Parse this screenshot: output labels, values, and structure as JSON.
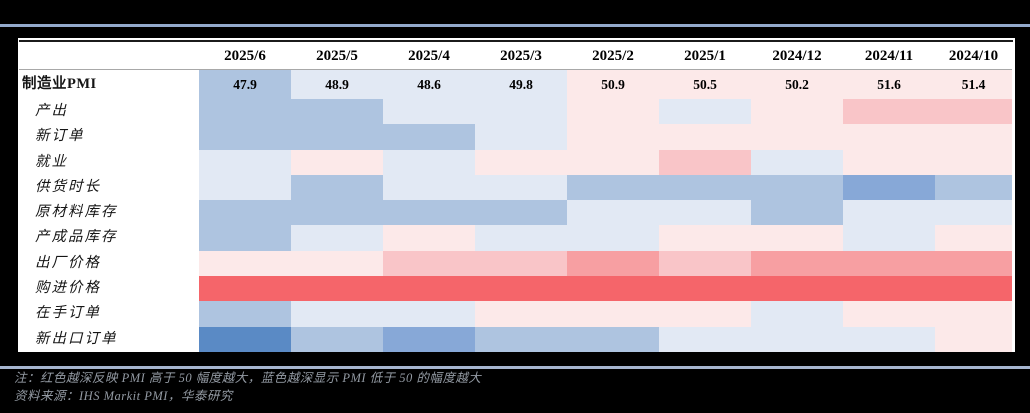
{
  "chart_data": {
    "type": "heatmap",
    "title": "",
    "columns": [
      "2025/6",
      "2025/5",
      "2025/4",
      "2025/3",
      "2025/2",
      "2025/1",
      "2024/12",
      "2024/11",
      "2024/10"
    ],
    "pmi_row": {
      "label": "制造业PMI",
      "values": [
        "47.9",
        "48.9",
        "48.6",
        "49.8",
        "50.9",
        "50.5",
        "50.2",
        "51.6",
        "51.4"
      ],
      "levels": [
        "blue1",
        "blue0",
        "blue0",
        "blue0",
        "pink0",
        "pink0",
        "pink0",
        "pink0",
        "pink0"
      ]
    },
    "rows": [
      {
        "label": "产出",
        "levels": [
          "blue1",
          "blue1",
          "blue0",
          "blue0",
          "pink0",
          "blue0",
          "pink0",
          "pink1",
          "pink1"
        ]
      },
      {
        "label": "新订单",
        "levels": [
          "blue1",
          "blue1",
          "blue1",
          "blue0",
          "pink0",
          "pink0",
          "pink0",
          "pink0",
          "pink0"
        ]
      },
      {
        "label": "就业",
        "levels": [
          "blue0",
          "pink0",
          "blue0",
          "pink0",
          "pink0",
          "pink1",
          "blue0",
          "pink0",
          "pink0"
        ]
      },
      {
        "label": "供货时长",
        "levels": [
          "blue0",
          "blue1",
          "blue0",
          "blue0",
          "blue1",
          "blue1",
          "blue1",
          "blue2",
          "blue1"
        ]
      },
      {
        "label": "原材料库存",
        "levels": [
          "blue1",
          "blue1",
          "blue1",
          "blue1",
          "blue0",
          "blue0",
          "blue1",
          "blue0",
          "blue0"
        ]
      },
      {
        "label": "产成品库存",
        "levels": [
          "blue1",
          "blue0",
          "pink0",
          "blue0",
          "blue0",
          "pink0",
          "pink0",
          "blue0",
          "pink0"
        ]
      },
      {
        "label": "出厂价格",
        "levels": [
          "pink0",
          "pink0",
          "pink1",
          "pink1",
          "pink2",
          "pink1",
          "pink2",
          "pink2",
          "pink2"
        ]
      },
      {
        "label": "购进价格",
        "levels": [
          "red",
          "red",
          "red",
          "red",
          "red",
          "red",
          "red",
          "red",
          "red"
        ]
      },
      {
        "label": "在手订单",
        "levels": [
          "blue1",
          "blue0",
          "blue0",
          "pink0",
          "pink0",
          "pink0",
          "blue0",
          "pink0",
          "pink0"
        ]
      },
      {
        "label": "新出口订单",
        "levels": [
          "blue3",
          "blue1",
          "blue2",
          "blue1",
          "blue1",
          "blue0",
          "blue0",
          "blue0",
          "pink0"
        ]
      }
    ],
    "palette": {
      "blue3": "#5a8ac5",
      "blue2": "#87a8d7",
      "blue1": "#aec4e0",
      "blue0": "#e2e9f4",
      "pink0": "#fce9e9",
      "pink1": "#f9c5c8",
      "pink2": "#f79fa2",
      "red": "#f5656a"
    },
    "legend_note": "红色越深反映 PMI 高于 50 幅度越大，蓝色越深显示 PMI 低于 50 的幅度越大"
  },
  "notes": {
    "line1": "注：红色越深反映 PMI 高于 50 幅度越大，蓝色越深显示 PMI 低于 50 的幅度越大",
    "line2": "资料来源：IHS Markit PMI，华泰研究"
  }
}
